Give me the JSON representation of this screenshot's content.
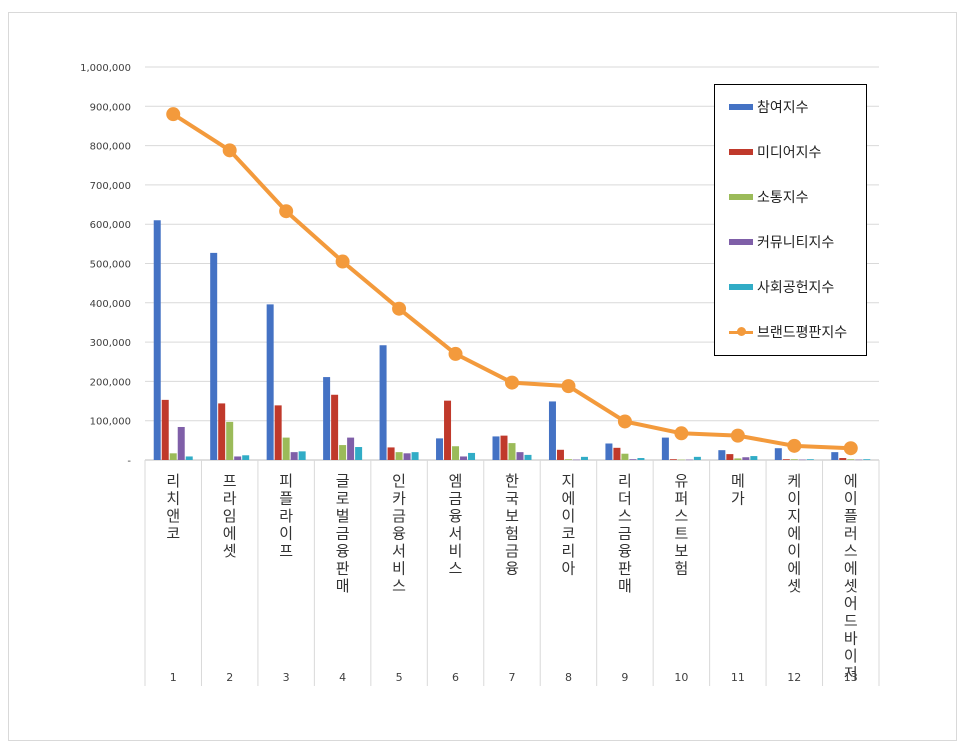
{
  "chart_data": {
    "type": "bar",
    "title": "",
    "xlabel": "",
    "ylabel": "",
    "ylim": [
      0,
      1000000
    ],
    "yticks": [
      0,
      100000,
      200000,
      300000,
      400000,
      500000,
      600000,
      700000,
      800000,
      900000,
      1000000
    ],
    "ytick_labels": [
      "-",
      "100,000",
      "200,000",
      "300,000",
      "400,000",
      "500,000",
      "600,000",
      "700,000",
      "800,000",
      "900,000",
      "1,000,000"
    ],
    "grid": true,
    "legend_position": "right",
    "categories": [
      "리치앤코",
      "프라임에셋",
      "피플라이프",
      "글로벌금융판매",
      "인카금융서비스",
      "엠금융서비스",
      "한국보험금융",
      "지에이코리아",
      "리더스금융판매",
      "유퍼스트보험",
      "메가",
      "케이지에이에셋",
      "에이플러스에셋어드바이저"
    ],
    "ranks": [
      "1",
      "2",
      "3",
      "4",
      "5",
      "6",
      "7",
      "8",
      "9",
      "10",
      "11",
      "12",
      "13"
    ],
    "series": [
      {
        "name": "참여지수",
        "kind": "bar",
        "color": "#4472C4",
        "values": [
          610000,
          527000,
          396000,
          211000,
          292000,
          55000,
          60000,
          149000,
          42000,
          57000,
          25000,
          30000,
          20000
        ]
      },
      {
        "name": "미디어지수",
        "kind": "bar",
        "color": "#C0392B",
        "values": [
          153000,
          144000,
          139000,
          166000,
          32000,
          151000,
          62000,
          26000,
          31000,
          2000,
          15000,
          2000,
          5000
        ]
      },
      {
        "name": "소통지수",
        "kind": "bar",
        "color": "#9BBB59",
        "values": [
          17000,
          97000,
          57000,
          38000,
          20000,
          35000,
          43000,
          2000,
          16000,
          1000,
          4000,
          2000,
          2000
        ]
      },
      {
        "name": "커뮤니티지수",
        "kind": "bar",
        "color": "#7F5FA8",
        "values": [
          84000,
          9000,
          20000,
          57000,
          17000,
          9000,
          20000,
          1000,
          2000,
          1000,
          7000,
          1000,
          1000
        ]
      },
      {
        "name": "사회공헌지수",
        "kind": "bar",
        "color": "#31ACC6",
        "values": [
          9000,
          12000,
          22000,
          33000,
          20000,
          18000,
          13000,
          8000,
          5000,
          8000,
          10000,
          2000,
          2000
        ]
      },
      {
        "name": "브랜드평판지수",
        "kind": "line",
        "color": "#F39A3C",
        "values": [
          880000,
          788000,
          633000,
          505000,
          385000,
          270000,
          197000,
          188000,
          98000,
          68000,
          62000,
          36000,
          30000
        ]
      }
    ]
  }
}
